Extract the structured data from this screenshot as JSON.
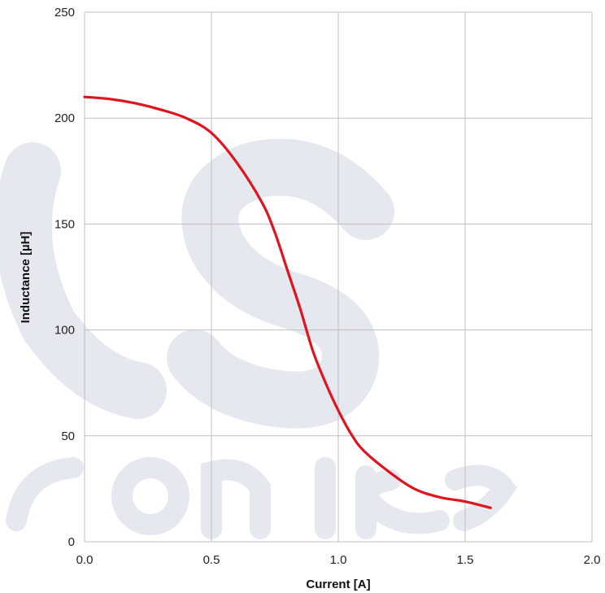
{
  "chart_data": {
    "type": "line",
    "xlabel": "Current [A]",
    "ylabel": "Inductance [µH]",
    "xlim": [
      0,
      2.0
    ],
    "ylim": [
      0,
      250
    ],
    "xticks": [
      0.0,
      0.5,
      1.0,
      1.5,
      2.0
    ],
    "xtick_labels": [
      "0.0",
      "0.5",
      "1.0",
      "1.5",
      "2.0"
    ],
    "yticks": [
      0,
      50,
      100,
      150,
      200,
      250
    ],
    "ytick_labels": [
      "0",
      "50",
      "100",
      "150",
      "200",
      "250"
    ],
    "grid": true,
    "legend": "none",
    "series": [
      {
        "color": "#e0141e",
        "x": [
          0.0,
          0.1,
          0.2,
          0.3,
          0.4,
          0.5,
          0.6,
          0.7,
          0.75,
          0.8,
          0.85,
          0.9,
          0.95,
          1.0,
          1.05,
          1.1,
          1.2,
          1.3,
          1.4,
          1.5,
          1.6
        ],
        "y": [
          210,
          209,
          207,
          204,
          200,
          193,
          179,
          160,
          146,
          128,
          110,
          90,
          75,
          62,
          51,
          43,
          33,
          25,
          21,
          19,
          16
        ]
      }
    ]
  },
  "colors": {
    "grid": "#bfbfbf",
    "line": "#e0141e",
    "watermark": "#e6e8f0"
  }
}
